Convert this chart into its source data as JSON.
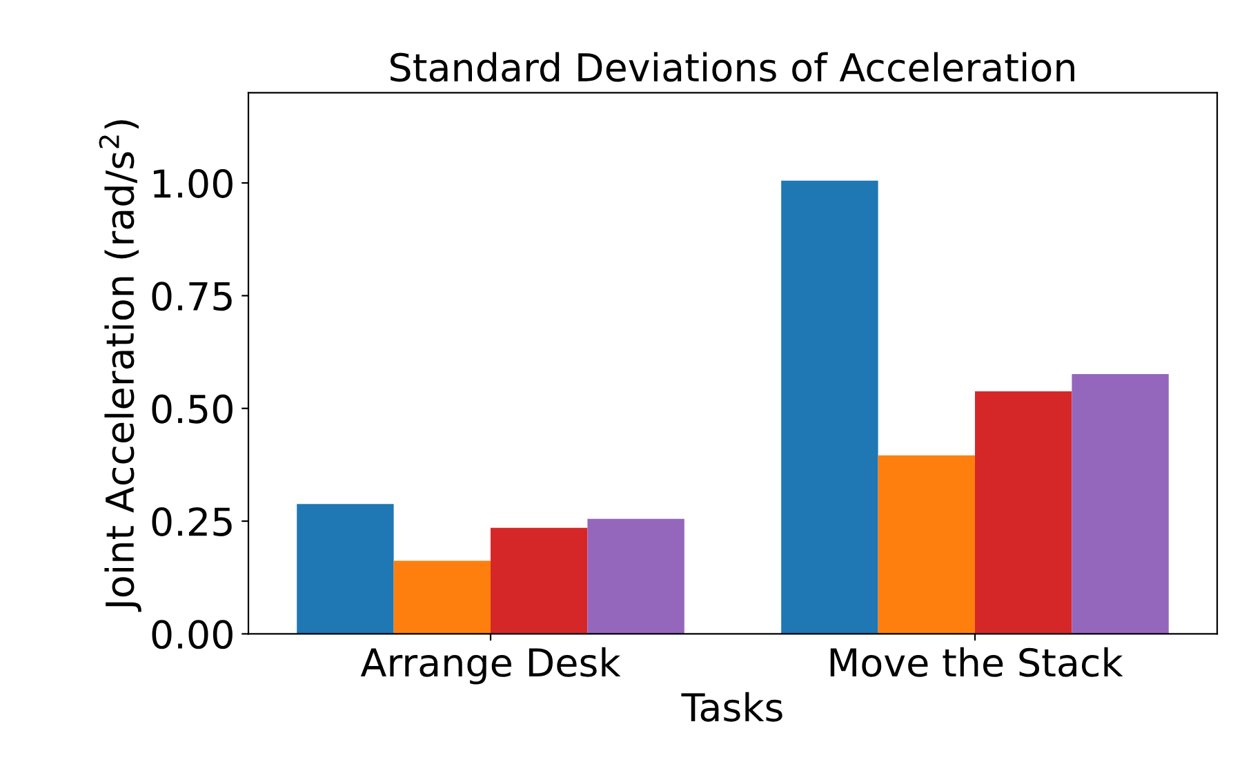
{
  "chart_data": {
    "type": "bar",
    "title": "Standard Deviations of Acceleration",
    "xlabel": "Tasks",
    "ylabel": "Joint Acceleration (rad/s$^{2}$)",
    "categories": [
      "Arrange Desk",
      "Move the Stack"
    ],
    "series": [
      {
        "color": "#1f77b4",
        "values": [
          0.288,
          1.005
        ]
      },
      {
        "color": "#ff7f0e",
        "values": [
          0.162,
          0.396
        ]
      },
      {
        "color": "#d62728",
        "values": [
          0.235,
          0.538
        ]
      },
      {
        "color": "#9467bd",
        "values": [
          0.255,
          0.576
        ]
      }
    ],
    "ylim": [
      0,
      1.2
    ],
    "yticks": [
      {
        "value": 0,
        "label": "0.00"
      },
      {
        "value": 0.25,
        "label": "0.25"
      },
      {
        "value": 0.5,
        "label": "0.50"
      },
      {
        "value": 0.75,
        "label": "0.75"
      },
      {
        "value": 1.0,
        "label": "1.00"
      }
    ],
    "grid": false,
    "legend": false
  }
}
